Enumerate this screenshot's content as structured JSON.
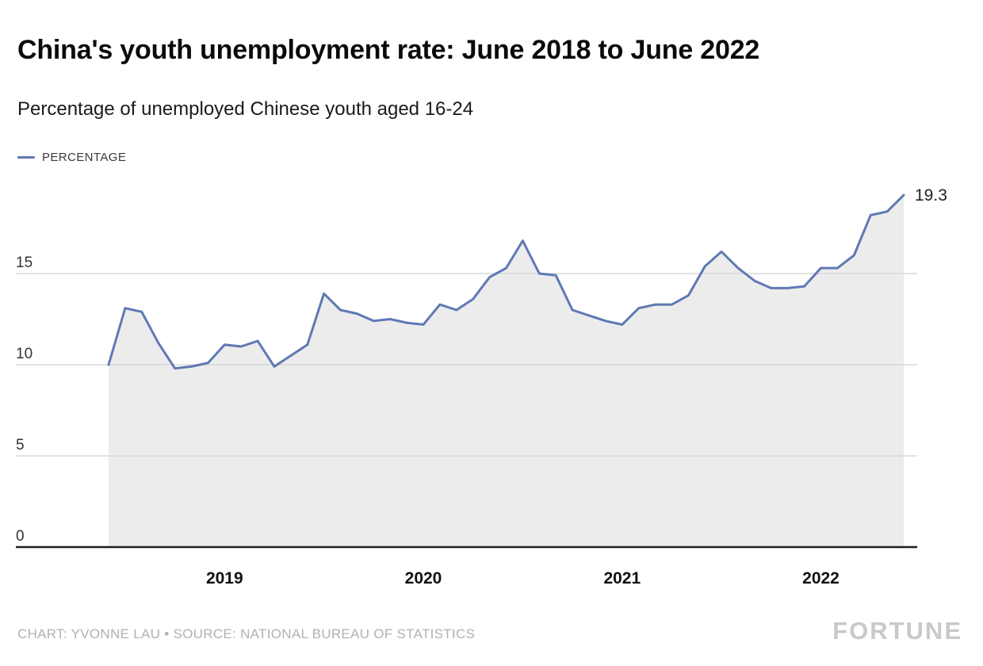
{
  "header": {
    "title": "China's youth unemployment rate: June 2018 to June 2022",
    "subtitle": "Percentage of unemployed Chinese youth aged 16-24"
  },
  "legend": {
    "label": "PERCENTAGE"
  },
  "footer": {
    "credit": "CHART: YVONNE LAU • SOURCE: NATIONAL BUREAU OF STATISTICS",
    "brand": "FORTUNE"
  },
  "chart_data": {
    "type": "area",
    "title": "China's youth unemployment rate: June 2018 to June 2022",
    "subtitle": "Percentage of unemployed Chinese youth aged 16-24",
    "x": [
      "Jun 2018",
      "Jul 2018",
      "Aug 2018",
      "Sep 2018",
      "Oct 2018",
      "Nov 2018",
      "Dec 2018",
      "Jan 2019",
      "Feb 2019",
      "Mar 2019",
      "Apr 2019",
      "May 2019",
      "Jun 2019",
      "Jul 2019",
      "Aug 2019",
      "Sep 2019",
      "Oct 2019",
      "Nov 2019",
      "Dec 2019",
      "Jan 2020",
      "Feb 2020",
      "Mar 2020",
      "Apr 2020",
      "May 2020",
      "Jun 2020",
      "Jul 2020",
      "Aug 2020",
      "Sep 2020",
      "Oct 2020",
      "Nov 2020",
      "Dec 2020",
      "Jan 2021",
      "Feb 2021",
      "Mar 2021",
      "Apr 2021",
      "May 2021",
      "Jun 2021",
      "Jul 2021",
      "Aug 2021",
      "Sep 2021",
      "Oct 2021",
      "Nov 2021",
      "Dec 2021",
      "Jan 2022",
      "Feb 2022",
      "Mar 2022",
      "Apr 2022",
      "May 2022",
      "Jun 2022"
    ],
    "series": [
      {
        "name": "PERCENTAGE",
        "values": [
          10.0,
          13.1,
          12.9,
          11.2,
          9.8,
          9.9,
          10.1,
          11.1,
          11.0,
          11.3,
          9.9,
          10.5,
          11.1,
          13.9,
          13.0,
          12.8,
          12.4,
          12.5,
          12.3,
          12.2,
          13.3,
          13.0,
          13.6,
          14.8,
          15.3,
          16.8,
          15.0,
          14.9,
          13.0,
          12.7,
          12.4,
          12.2,
          13.1,
          13.3,
          13.3,
          13.8,
          15.4,
          16.2,
          15.3,
          14.6,
          14.2,
          14.2,
          14.3,
          15.3,
          15.3,
          16.0,
          18.2,
          18.4,
          19.3
        ]
      }
    ],
    "x_tick_labels": [
      "2019",
      "2020",
      "2021",
      "2022"
    ],
    "x_tick_positions": [
      7,
      19,
      31,
      43
    ],
    "y_ticks": [
      0,
      5,
      10,
      15
    ],
    "ylim": [
      0,
      20
    ],
    "end_label": "19.3",
    "grid": "horizontal",
    "legend_position": "top-left",
    "colors": {
      "line": "#5f79b4",
      "area": "#ececec",
      "grid": "#d8d8d8",
      "axis": "#1f1f1f",
      "y_label": "#333333",
      "x_label": "#111111",
      "end_label": "#222222"
    }
  }
}
